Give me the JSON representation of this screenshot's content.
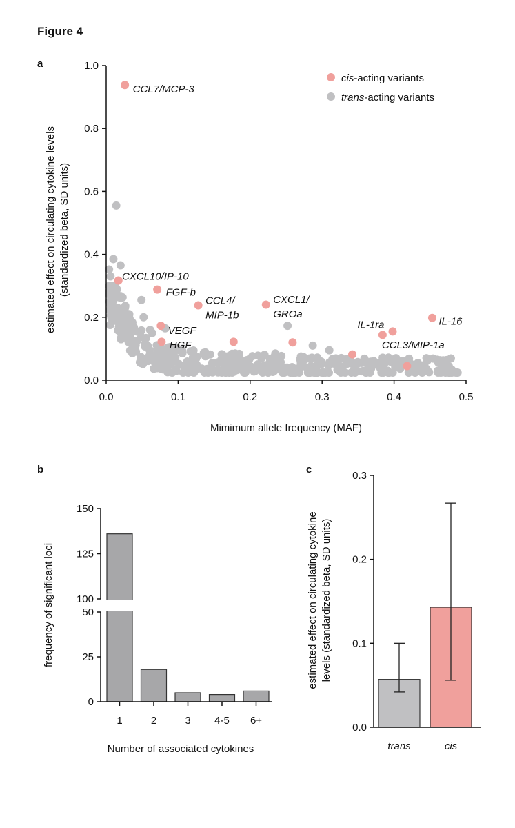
{
  "figure_title": "Figure 4",
  "panels": {
    "a": "a",
    "b": "b",
    "c": "c"
  },
  "colors": {
    "cis": "#f0a09c",
    "trans": "#c0c0c2",
    "bar_gray": "#a7a7a9",
    "axis": "#111111"
  },
  "chart_data": [
    {
      "type": "scatter",
      "xlabel": "Mimimum allele frequency (MAF)",
      "ylabel_lines": [
        "estimated effect on circulating cytokine levels",
        "(standardized beta, SD units)"
      ],
      "xlim": [
        0,
        0.5
      ],
      "ylim": [
        0,
        1.0
      ],
      "xticks": [
        "0.0",
        "0.1",
        "0.2",
        "0.3",
        "0.4",
        "0.5"
      ],
      "yticks": [
        "0.0",
        "0.2",
        "0.4",
        "0.6",
        "0.8",
        "1.0"
      ],
      "legend": {
        "placement": "top-right",
        "entries": [
          {
            "italic": "cis",
            "rest": "-acting variants",
            "color": "#f0a09c"
          },
          {
            "italic": "trans",
            "rest": "-acting variants",
            "color": "#c0c0c2"
          }
        ]
      },
      "cis_points": [
        {
          "x": 0.026,
          "y": 0.938
        },
        {
          "x": 0.017,
          "y": 0.317
        },
        {
          "x": 0.071,
          "y": 0.288
        },
        {
          "x": 0.128,
          "y": 0.238
        },
        {
          "x": 0.222,
          "y": 0.24
        },
        {
          "x": 0.076,
          "y": 0.173
        },
        {
          "x": 0.077,
          "y": 0.122
        },
        {
          "x": 0.177,
          "y": 0.122
        },
        {
          "x": 0.259,
          "y": 0.12
        },
        {
          "x": 0.342,
          "y": 0.082
        },
        {
          "x": 0.384,
          "y": 0.144
        },
        {
          "x": 0.398,
          "y": 0.155
        },
        {
          "x": 0.453,
          "y": 0.198
        },
        {
          "x": 0.418,
          "y": 0.045
        }
      ],
      "annotations": [
        {
          "lines": [
            "CCL7/MCP-3"
          ],
          "x": 0.037,
          "y": 0.925
        },
        {
          "lines": [
            "CXCL10/IP-10"
          ],
          "x": 0.022,
          "y": 0.33
        },
        {
          "lines": [
            "FGF-b"
          ],
          "x": 0.083,
          "y": 0.28
        },
        {
          "lines": [
            "CCL4/",
            "MIP-1b"
          ],
          "x": 0.138,
          "y": 0.253
        },
        {
          "lines": [
            "CXCL1/",
            "GROa"
          ],
          "x": 0.232,
          "y": 0.257
        },
        {
          "lines": [
            "VEGF"
          ],
          "x": 0.086,
          "y": 0.158
        },
        {
          "lines": [
            "HGF"
          ],
          "x": 0.088,
          "y": 0.112
        },
        {
          "lines": [
            "IL-1ra"
          ],
          "x": 0.349,
          "y": 0.177
        },
        {
          "lines": [
            "CCL3/MIP-1a"
          ],
          "x": 0.383,
          "y": 0.112
        },
        {
          "lines": [
            "IL-16"
          ],
          "x": 0.462,
          "y": 0.187
        }
      ]
    },
    {
      "type": "bar",
      "xlabel": "Number of associated cytokines",
      "ylabel": "frequency of significant loci",
      "categories": [
        "1",
        "2",
        "3",
        "4-5",
        "6+"
      ],
      "values": [
        136,
        18,
        5,
        4,
        6
      ],
      "y_axis_break": {
        "lower_range": [
          0,
          50
        ],
        "upper_range": [
          100,
          150
        ]
      },
      "lower_ticks": [
        0,
        25,
        50
      ],
      "upper_ticks": [
        100,
        125,
        150
      ]
    },
    {
      "type": "bar",
      "ylabel_lines": [
        "estimated effect on circulating cytokine",
        "levels (standardized beta, SD units)"
      ],
      "categories": [
        "trans",
        "cis"
      ],
      "values": [
        0.057,
        0.143
      ],
      "error_low": [
        0.042,
        0.056
      ],
      "error_high": [
        0.1,
        0.267
      ],
      "ylim": [
        0,
        0.3
      ],
      "yticks": [
        "0.0",
        "0.1",
        "0.2",
        "0.3"
      ]
    }
  ]
}
